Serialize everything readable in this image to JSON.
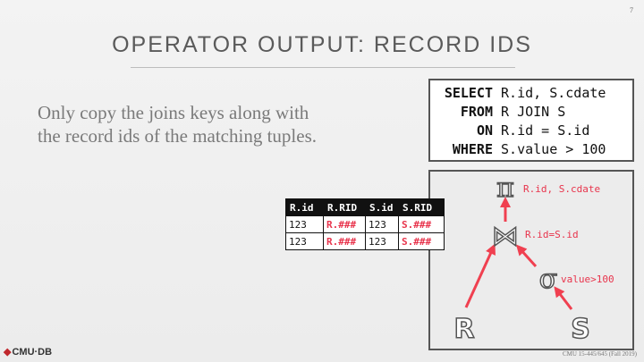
{
  "page_number": "7",
  "title": "OPERATOR OUTPUT: RECORD IDS",
  "body_lines": [
    "Only copy the joins keys along with",
    "the record ids of the matching tuples."
  ],
  "sql": [
    {
      "kw": "SELECT",
      "rest": " R.id, S.cdate"
    },
    {
      "kw": "FROM",
      "rest": " R JOIN S"
    },
    {
      "kw": "ON",
      "rest": " R.id = S.id"
    },
    {
      "kw": "WHERE",
      "rest": " S.value > 100"
    }
  ],
  "plan": {
    "projection_symbol": "π",
    "projection_label": "R.id, S.cdate",
    "join_symbol": "⋈",
    "join_label": "R.id=S.id",
    "selection_symbol": "σ",
    "selection_label": "value>100",
    "left_relation": "R",
    "right_relation": "S",
    "arrow_color": "#f04050",
    "label_color": "#e8344c"
  },
  "table": {
    "headers": [
      "R.id",
      "R.RID",
      "S.id",
      "S.RID"
    ],
    "rows": [
      [
        "123",
        "R.###",
        "123",
        "S.###"
      ],
      [
        "123",
        "R.###",
        "123",
        "S.###"
      ]
    ]
  },
  "footer": {
    "logo": "CMU·DB",
    "course": "CMU 15-445/645 (Fall 2019)"
  }
}
